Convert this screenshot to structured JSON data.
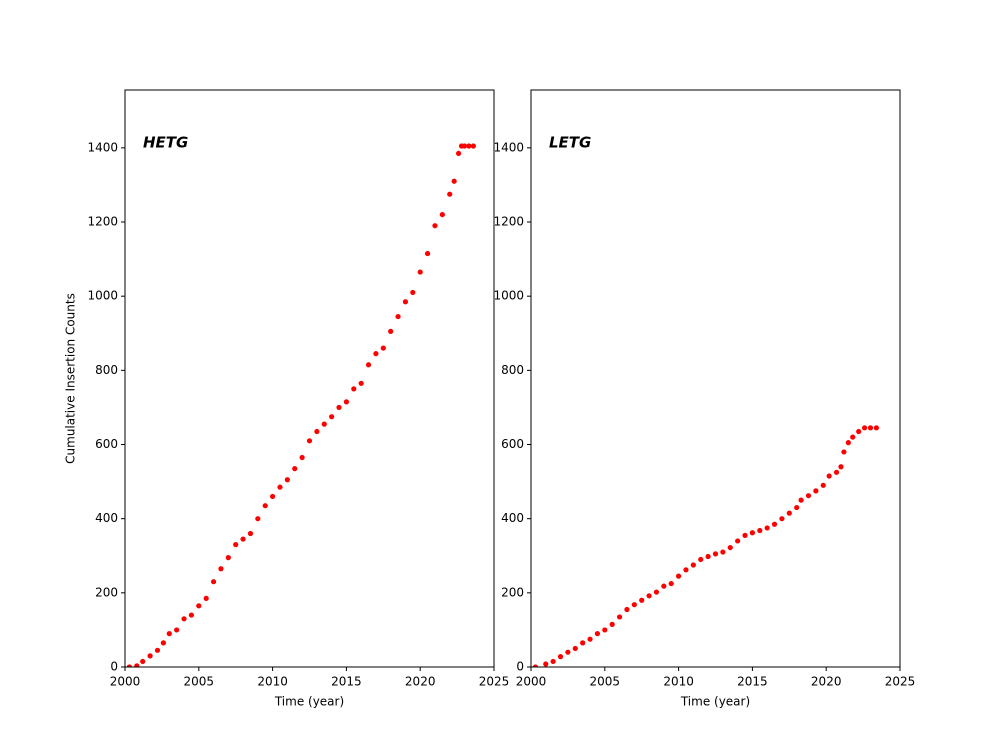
{
  "chart_data": [
    {
      "type": "scatter",
      "annotation": "HETG",
      "xlabel": "Time (year)",
      "ylabel": "Cumulative Insertion Counts",
      "color": "#ff0000",
      "xlim": [
        2000,
        2025
      ],
      "ylim": [
        0,
        1556
      ],
      "xticks": [
        2000,
        2005,
        2010,
        2015,
        2020,
        2025
      ],
      "yticks": [
        0,
        200,
        400,
        600,
        800,
        1000,
        1200,
        1400
      ],
      "x": [
        2000.3,
        2000.8,
        2001.2,
        2001.7,
        2002.2,
        2002.6,
        2003.0,
        2003.5,
        2004.0,
        2004.5,
        2005.0,
        2005.5,
        2006.0,
        2006.5,
        2007.0,
        2007.5,
        2008.0,
        2008.5,
        2009.0,
        2009.5,
        2010.0,
        2010.5,
        2011.0,
        2011.5,
        2012.0,
        2012.5,
        2013.0,
        2013.5,
        2014.0,
        2014.5,
        2015.0,
        2015.5,
        2016.0,
        2016.5,
        2017.0,
        2017.5,
        2018.0,
        2018.5,
        2019.0,
        2019.5,
        2020.0,
        2020.5,
        2021.0,
        2021.5,
        2022.0,
        2022.3,
        2022.6,
        2022.8,
        2023.0,
        2023.3,
        2023.6
      ],
      "values": [
        0,
        3,
        15,
        30,
        45,
        65,
        90,
        100,
        130,
        140,
        165,
        185,
        230,
        265,
        295,
        330,
        345,
        360,
        400,
        435,
        460,
        485,
        505,
        535,
        565,
        610,
        635,
        655,
        675,
        700,
        715,
        750,
        765,
        815,
        845,
        860,
        905,
        945,
        985,
        1010,
        1065,
        1115,
        1190,
        1220,
        1275,
        1310,
        1385,
        1405,
        1405,
        1405,
        1405
      ]
    },
    {
      "type": "scatter",
      "annotation": "LETG",
      "xlabel": "Time (year)",
      "color": "#ff0000",
      "xlim": [
        2000,
        2025
      ],
      "ylim": [
        0,
        1556
      ],
      "xticks": [
        2000,
        2005,
        2010,
        2015,
        2020,
        2025
      ],
      "yticks": [
        0,
        200,
        400,
        600,
        800,
        1000,
        1200,
        1400
      ],
      "x": [
        2000.3,
        2001.0,
        2001.5,
        2002.0,
        2002.5,
        2003.0,
        2003.5,
        2004.0,
        2004.5,
        2005.0,
        2005.5,
        2006.0,
        2006.5,
        2007.0,
        2007.5,
        2008.0,
        2008.5,
        2009.0,
        2009.5,
        2010.0,
        2010.5,
        2011.0,
        2011.5,
        2012.0,
        2012.5,
        2013.0,
        2013.5,
        2014.0,
        2014.5,
        2015.0,
        2015.5,
        2016.0,
        2016.5,
        2017.0,
        2017.5,
        2018.0,
        2018.3,
        2018.8,
        2019.3,
        2019.8,
        2020.2,
        2020.7,
        2021.0,
        2021.2,
        2021.5,
        2021.8,
        2022.2,
        2022.6,
        2023.0,
        2023.4
      ],
      "values": [
        0,
        8,
        15,
        28,
        40,
        50,
        65,
        75,
        90,
        100,
        115,
        135,
        155,
        168,
        180,
        192,
        202,
        218,
        225,
        245,
        262,
        275,
        290,
        298,
        305,
        310,
        322,
        340,
        355,
        362,
        368,
        375,
        385,
        400,
        415,
        430,
        450,
        462,
        475,
        490,
        515,
        525,
        540,
        580,
        605,
        620,
        635,
        645,
        645,
        645
      ]
    }
  ]
}
